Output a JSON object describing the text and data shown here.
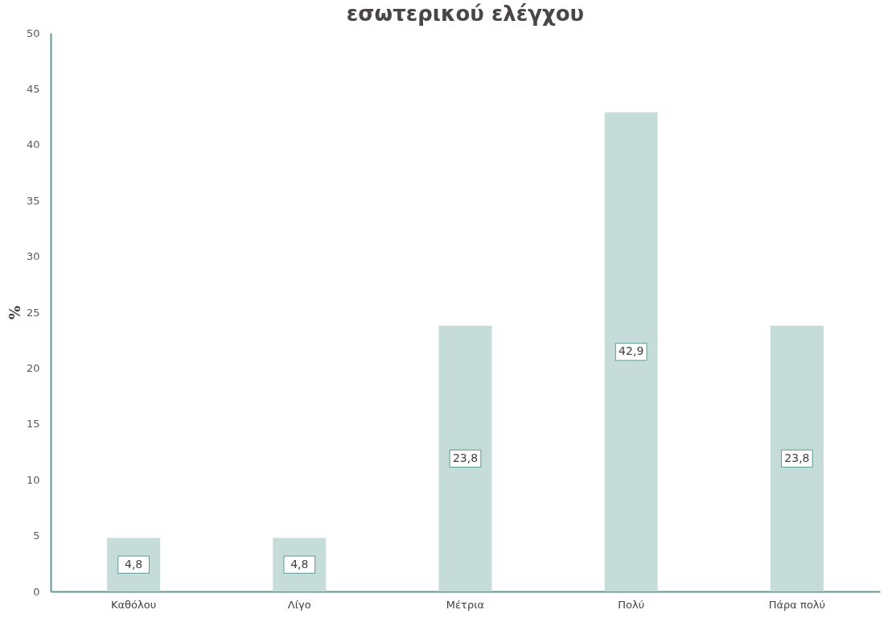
{
  "chart_data": {
    "type": "bar",
    "title": "εσωτερικού ελέγχου",
    "ylabel": "%",
    "categories": [
      "Καθόλου",
      "Λίγο",
      "Μέτρια",
      "Πολύ",
      "Πάρα πολύ"
    ],
    "values": [
      4.8,
      4.8,
      23.8,
      42.9,
      23.8
    ],
    "value_labels": [
      "4,8",
      "4,8",
      "23,8",
      "42,9",
      "23,8"
    ],
    "color": "#c5dcd9",
    "ylim": [
      0,
      50
    ],
    "yticks": [
      0,
      5,
      10,
      15,
      20,
      25,
      30,
      35,
      40,
      45,
      50
    ],
    "grid": false
  }
}
